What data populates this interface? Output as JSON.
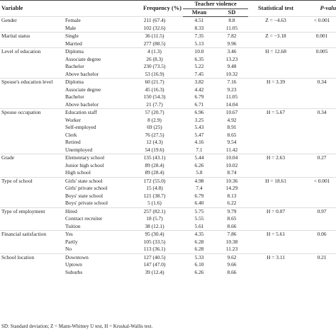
{
  "table": {
    "headers": {
      "variable": "Variable",
      "frequency": "Frequency (%)",
      "violence": "Teacher violence",
      "mean": "Mean",
      "sd": "SD",
      "test": "Statistical test",
      "p": "P-value"
    },
    "groups": [
      {
        "name": "Gender",
        "test": "Z = −4.63",
        "p": "< 0.001",
        "rows": [
          [
            "Female",
            "211 (67.4)",
            "4.51",
            "8.8"
          ],
          [
            "Male",
            "102 (32.6)",
            "8.33",
            "11.05"
          ]
        ]
      },
      {
        "name": "Marital status",
        "test": "Z = −3.18",
        "p": "0.001",
        "rows": [
          [
            "Single",
            "36 (11.5)",
            "7.35",
            "7.82"
          ],
          [
            "Married",
            "277 (88.5)",
            "5.13",
            "9.96"
          ]
        ]
      },
      {
        "name": "Level of education",
        "test": "H = 12.68",
        "p": "0.005",
        "rows": [
          [
            "Diploma",
            "4 (1.3)",
            "10.0",
            "3.46"
          ],
          [
            "Associate degree",
            "26 (8.3)",
            "6.35",
            "13.23"
          ],
          [
            "Bachelor",
            "230 (73.5)",
            "5.22",
            "9.48"
          ],
          [
            "Above bachelor",
            "53 (16.9)",
            "7.45",
            "10.32"
          ]
        ]
      },
      {
        "name": "Spouse's education level",
        "test": "H = 3.39",
        "p": "0.34",
        "rows": [
          [
            "Diploma",
            "60 (21.7)",
            "3.82",
            "7.16"
          ],
          [
            "Associate degree",
            "45 (16.3)",
            "4.42",
            "9.23"
          ],
          [
            "Bachelor",
            "150 (54.3)",
            "6.79",
            "11.05"
          ],
          [
            "Above bachelor",
            "21 (7.7)",
            "6.71",
            "14.04"
          ]
        ]
      },
      {
        "name": "Spouse occupation",
        "test": "H = 5.67",
        "p": "0.34",
        "rows": [
          [
            "Education staff",
            "57 (20.7)",
            "6.96",
            "10.67"
          ],
          [
            "Worker",
            "8 (2.9)",
            "3.25",
            "4.92"
          ],
          [
            "Self-employed",
            "69 (25)",
            "5.43",
            "8.91"
          ],
          [
            "Clerk",
            "76 (27.5)",
            "5.47",
            "8.65"
          ],
          [
            "Retired",
            "12 (4.3)",
            "4.16",
            "9.54"
          ],
          [
            "Unemployed",
            "54 (19.6)",
            "7.1",
            "11.42"
          ]
        ]
      },
      {
        "name": "Grade",
        "test": "H = 2.63",
        "p": "0.27",
        "rows": [
          [
            "Elementary school",
            "135 (43.1)",
            "5.44",
            "10.04"
          ],
          [
            "Junior high school",
            "89 (28.4)",
            "6.26",
            "10.02"
          ],
          [
            "High school",
            "89 (28.4)",
            "5.8",
            "8.74"
          ]
        ]
      },
      {
        "name": "Type of school",
        "test": "H = 18.61",
        "p": "< 0.001",
        "rows": [
          [
            "Girls' state school",
            "172 (55.0)",
            "4.98",
            "10.36"
          ],
          [
            "Girls' private school",
            "15 (4.8)",
            "7.4",
            "14.29"
          ],
          [
            "Boys' state school",
            "121 (38.7)",
            "6.79",
            "8.13"
          ],
          [
            "Boys' private school",
            "5 (1.6)",
            "6.40",
            "6.22"
          ]
        ]
      },
      {
        "name": "Type of employment",
        "test": "H = 0.07",
        "p": "0.97",
        "rows": [
          [
            "Hired",
            "257 (82.1)",
            "5.75",
            "9.79"
          ],
          [
            "Contract recruiter",
            "18 (5.7)",
            "5.55",
            "8.65"
          ],
          [
            "Tuition",
            "38 (12.1)",
            "5.61",
            "8.66"
          ]
        ]
      },
      {
        "name": "Financial satisfaction",
        "test": "H = 5.61",
        "p": "0.06",
        "rows": [
          [
            "Yes",
            "95 (30.4)",
            "4.35",
            "7.86"
          ],
          [
            "Partly",
            "105 (33.5)",
            "6.28",
            "10.38"
          ],
          [
            "No",
            "113 (36.1)",
            "6.28",
            "11.23"
          ]
        ]
      },
      {
        "name": "School location",
        "test": "H = 3.11",
        "p": "0.21",
        "rows": [
          [
            "Downtown",
            "127 (40.5)",
            "5.33",
            "9.62"
          ],
          [
            "Uptown",
            "147 (47.0)",
            "6.10",
            "9.66"
          ],
          [
            "Suburbs",
            "39 (12.4)",
            "6.26",
            "8.66"
          ]
        ]
      }
    ],
    "footnote": "SD: Standard deviation; Z = Mann-Whitney U test, H = Kruskal-Wallis test."
  }
}
